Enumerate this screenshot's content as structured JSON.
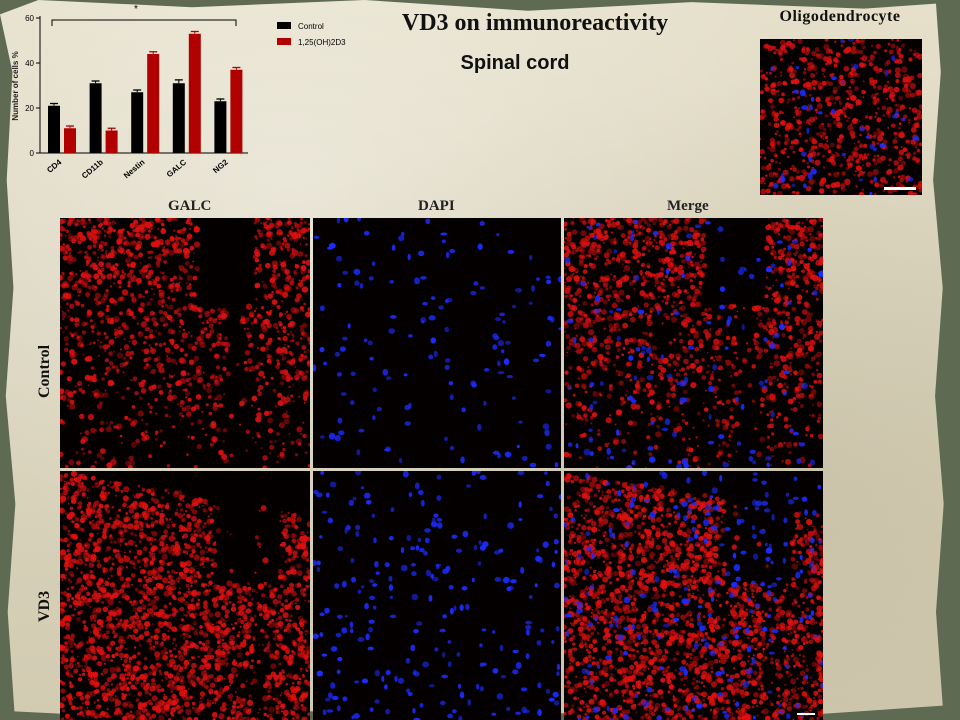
{
  "slide": {
    "title": "VD3 on immunoreactivity",
    "subtitle": "Spinal cord",
    "oligodendrocyte_label": "Oligodendrocyte",
    "column_headers": [
      "GALC",
      "DAPI",
      "Merge"
    ],
    "row_headers": [
      "Control",
      "VD3"
    ]
  },
  "chart_data": {
    "type": "bar",
    "categories": [
      "CD4",
      "CD11b",
      "Nestin",
      "GALC",
      "NG2"
    ],
    "series": [
      {
        "name": "Control",
        "values": [
          21,
          31,
          27,
          31,
          23
        ],
        "error": [
          1,
          1,
          1,
          1.5,
          1
        ],
        "color": "#000000"
      },
      {
        "name": "1,25(OH)2D3",
        "values": [
          11,
          10,
          44,
          53,
          37
        ],
        "error": [
          1,
          1,
          1,
          1,
          1
        ],
        "color": "#b00000"
      }
    ],
    "ylabel": "Number of cells %",
    "ylim": [
      0,
      60
    ],
    "yticks": [
      0,
      20,
      40,
      60
    ],
    "significance_marker": "*",
    "legend_position": "top-right",
    "grid": false
  },
  "colors": {
    "galc_stain": "#e01010",
    "dapi_stain": "#1a2cff",
    "background": "#050000"
  }
}
